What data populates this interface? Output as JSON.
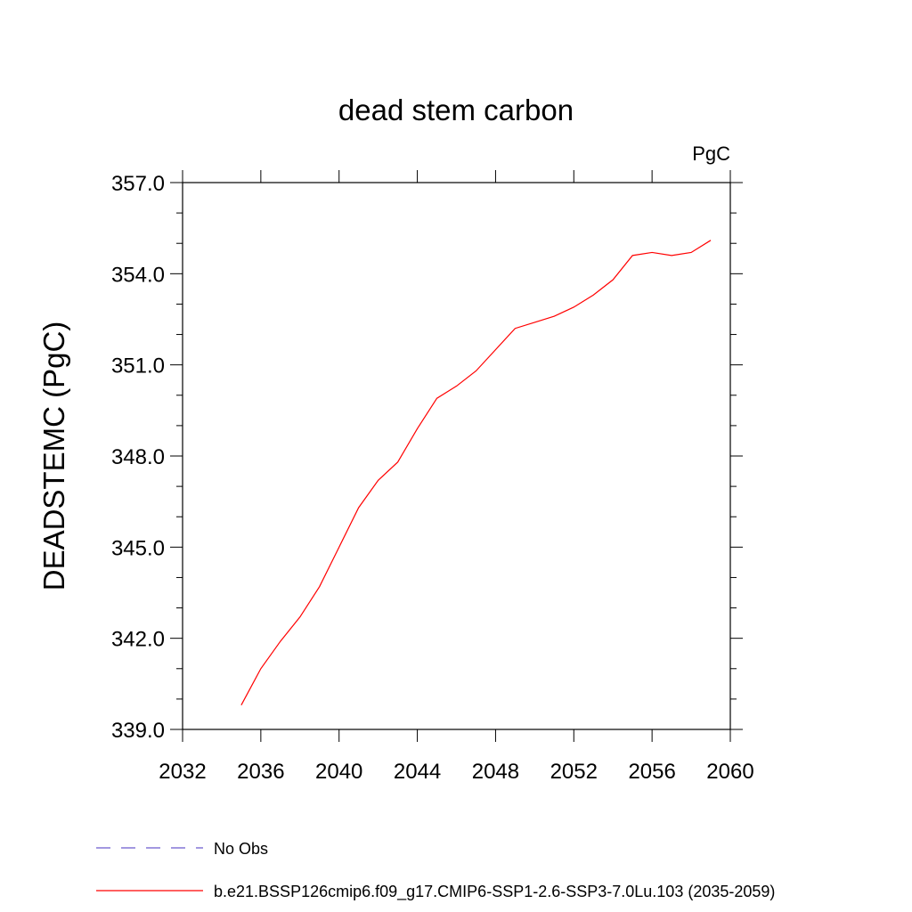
{
  "chart_data": {
    "type": "line",
    "title": "dead stem carbon",
    "units_label": "PgC",
    "ylabel": "DEADSTEMC  (PgC)",
    "xlabel": "",
    "xlim": [
      2032,
      2060
    ],
    "ylim": [
      339.0,
      357.0
    ],
    "x_ticks": [
      "2032",
      "2036",
      "2040",
      "2044",
      "2048",
      "2052",
      "2056",
      "2060"
    ],
    "y_ticks": [
      "339.0",
      "342.0",
      "345.0",
      "348.0",
      "351.0",
      "354.0",
      "357.0"
    ],
    "x": [
      2035,
      2036,
      2037,
      2038,
      2039,
      2040,
      2041,
      2042,
      2043,
      2044,
      2045,
      2046,
      2047,
      2048,
      2049,
      2050,
      2051,
      2052,
      2053,
      2054,
      2055,
      2056,
      2057,
      2058,
      2059
    ],
    "series": [
      {
        "name": "b.e21.BSSP126cmip6.f09_g17.CMIP6-SSP1-2.6-SSP3-7.0Lu.103 (2035-2059)",
        "color": "#ff0000",
        "values": [
          339.8,
          341.0,
          341.9,
          342.7,
          343.7,
          345.0,
          346.3,
          347.2,
          347.8,
          348.9,
          349.9,
          350.3,
          350.8,
          351.5,
          352.2,
          352.4,
          352.6,
          352.9,
          353.3,
          353.8,
          354.6,
          354.7,
          354.6,
          354.7,
          355.1
        ]
      }
    ],
    "legend": [
      {
        "label": "No Obs",
        "color": "#6a5acd",
        "style": "dashed"
      },
      {
        "label": "b.e21.BSSP126cmip6.f09_g17.CMIP6-SSP1-2.6-SSP3-7.0Lu.103 (2035-2059)",
        "color": "#ff0000",
        "style": "solid"
      }
    ],
    "legend_placement": "bottom-left",
    "grid": false
  }
}
